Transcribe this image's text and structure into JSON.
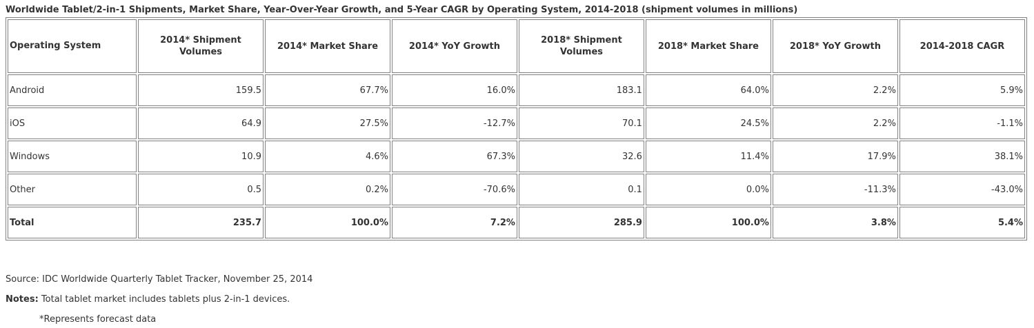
{
  "title": "Worldwide Tablet/2-in-1 Shipments, Market Share, Year-Over-Year Growth, and 5-Year CAGR by Operating System, 2014-2018 (shipment volumes in millions)",
  "table": {
    "headers": [
      "Operating System",
      "2014* Shipment Volumes",
      "2014* Market Share",
      "2014* YoY Growth",
      "2018* Shipment Volumes",
      "2018* Market Share",
      "2018* YoY Growth",
      "2014-2018 CAGR"
    ],
    "rows": [
      [
        "Android",
        "159.5",
        "67.7%",
        "16.0%",
        "183.1",
        "64.0%",
        "2.2%",
        "5.9%"
      ],
      [
        "iOS",
        "64.9",
        "27.5%",
        "-12.7%",
        "70.1",
        "24.5%",
        "2.2%",
        "-1.1%"
      ],
      [
        "Windows",
        "10.9",
        "4.6%",
        "67.3%",
        "32.6",
        "11.4%",
        "17.9%",
        "38.1%"
      ],
      [
        "Other",
        "0.5",
        "0.2%",
        "-70.6%",
        "0.1",
        "0.0%",
        "-11.3%",
        "-43.0%"
      ],
      [
        "Total",
        "235.7",
        "100.0%",
        "7.2%",
        "285.9",
        "100.0%",
        "3.8%",
        "5.4%"
      ]
    ]
  },
  "footer": {
    "source": "Source: IDC Worldwide Quarterly Tablet Tracker, November 25, 2014",
    "notes_label": "Notes:",
    "notes_text": " Total tablet market includes tablets plus 2-in-1 devices.",
    "forecast_note": "*Represents forecast data"
  }
}
